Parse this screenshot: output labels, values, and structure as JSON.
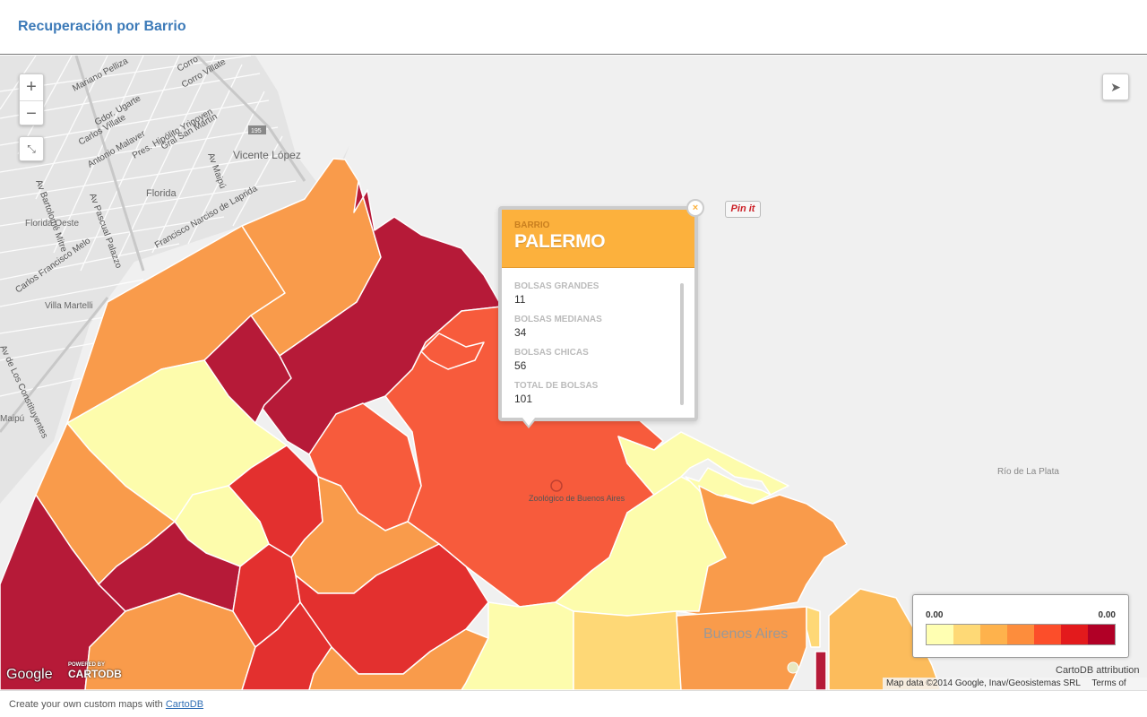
{
  "header": {
    "title": "Recuperación por Barrio"
  },
  "map": {
    "controls": {
      "zoom_in": "+",
      "zoom_out": "−",
      "fullscreen_icon": "fullscreen-icon",
      "share_icon": "share-icon"
    },
    "street_labels": [
      "Mariano Pelliza",
      "Corro",
      "Corro Villate",
      "Gdor. Ugarte",
      "Carlos Villate",
      "Antonio Malaver",
      "Pres. Hipólito Yrigoyen",
      "Gral San Martín",
      "Av Maipú",
      "Av Bartolomé Mitre",
      "Florida",
      "Florida Oeste",
      "Vicente López",
      "Av Pascual Palazzo",
      "Francisco Narciso de Laprida",
      "Carlos Francisco Melo",
      "Villa Martelli",
      "Av de Los Constituyentes",
      "Maipú",
      "Río de La Plata",
      "Zoológico de Buenos Aires",
      "Buenos Aires",
      "195"
    ]
  },
  "popup": {
    "field_label": "BARRIO",
    "title": "PALERMO",
    "fields": [
      {
        "label": "BOLSAS GRANDES",
        "value": "11"
      },
      {
        "label": "BOLSAS MEDIANAS",
        "value": "34"
      },
      {
        "label": "BOLSAS CHICAS",
        "value": "56"
      },
      {
        "label": "TOTAL DE BOLSAS",
        "value": "101"
      }
    ],
    "close": "×"
  },
  "pinit": "Pin it",
  "legend": {
    "min": "0.00",
    "max": "0.00",
    "colors": [
      "#ffffb2",
      "#fed976",
      "#feb24c",
      "#fd8d3c",
      "#fc4e2a",
      "#e31a1c",
      "#b10026"
    ]
  },
  "attribution": {
    "google": "Google",
    "powered_by": "POWERED BY",
    "cartodb": "CARTODB",
    "cartodb_attribution": "CartoDB attribution",
    "map_data": "Map data ©2014 Google, Inav/Geosistemas SRL",
    "terms": "Terms of Use"
  },
  "footer": {
    "text": "Create your own custom maps with ",
    "link": "CartoDB"
  },
  "colors": {
    "title": "#3c7ab8",
    "popup_header": "#fcb13d",
    "water": "#f0f0f0"
  }
}
